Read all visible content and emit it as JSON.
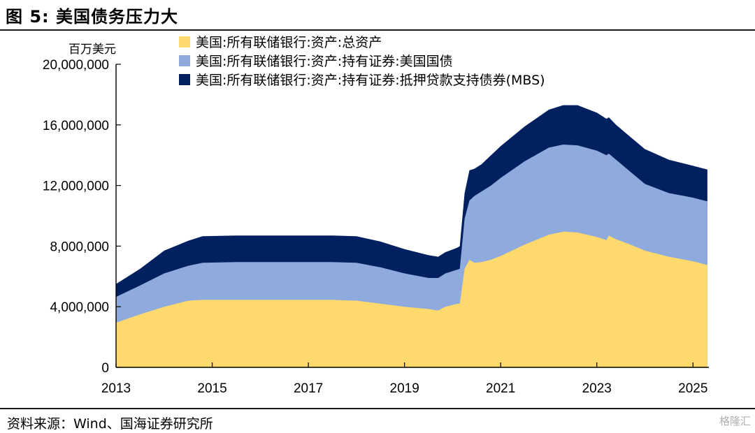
{
  "figure": {
    "title": "图 5:  美国债务压力大",
    "source": "资料来源：Wind、国海证券研究所",
    "watermark": "格隆汇"
  },
  "colors": {
    "total_assets": "#FDD96E",
    "treasuries": "#8FAADC",
    "mbs": "#002060",
    "axis": "#000000"
  },
  "chart_data": {
    "type": "area",
    "stacked": true,
    "unit_label": "百万美元",
    "xlim": [
      2013.0,
      2025.33
    ],
    "ylim": [
      0,
      20000000
    ],
    "x_ticks": [
      2013,
      2015,
      2017,
      2019,
      2021,
      2023,
      2025
    ],
    "y_ticks": [
      {
        "value": 0,
        "label": "0"
      },
      {
        "value": 4000000,
        "label": "4,000,000"
      },
      {
        "value": 8000000,
        "label": "8,000,000"
      },
      {
        "value": 12000000,
        "label": "12,000,000"
      },
      {
        "value": 16000000,
        "label": "16,000,000"
      },
      {
        "value": 20000000,
        "label": "20,000,000"
      }
    ],
    "legend_position": "top",
    "x": [
      2013.0,
      2013.5,
      2014.0,
      2014.5,
      2014.8,
      2015.5,
      2016.5,
      2017.5,
      2018.0,
      2018.5,
      2019.0,
      2019.5,
      2019.7,
      2019.85,
      2020.1,
      2020.15,
      2020.25,
      2020.35,
      2020.45,
      2020.6,
      2020.8,
      2021.0,
      2021.5,
      2022.0,
      2022.3,
      2022.6,
      2023.0,
      2023.2,
      2023.25,
      2023.4,
      2023.7,
      2024.0,
      2024.5,
      2025.0,
      2025.3
    ],
    "series": [
      {
        "name": "美国:所有联储银行:资产:总资产",
        "values": [
          2950000,
          3500000,
          4000000,
          4400000,
          4450000,
          4450000,
          4450000,
          4450000,
          4400000,
          4200000,
          4000000,
          3850000,
          3750000,
          4000000,
          4200000,
          4200000,
          6500000,
          7100000,
          6900000,
          6950000,
          7100000,
          7350000,
          8100000,
          8750000,
          8950000,
          8900000,
          8600000,
          8400000,
          8700000,
          8450000,
          8100000,
          7700000,
          7300000,
          7000000,
          6750000
        ]
      },
      {
        "name": "美国:所有联储银行:资产:持有证券:美国国债",
        "values": [
          4650000,
          5400000,
          6200000,
          6700000,
          6900000,
          6950000,
          6950000,
          6950000,
          6900000,
          6600000,
          6200000,
          5900000,
          5900000,
          6200000,
          6450000,
          6500000,
          9800000,
          11000000,
          11300000,
          11600000,
          12000000,
          12500000,
          13600000,
          14500000,
          14700000,
          14650000,
          14300000,
          14000000,
          14100000,
          13700000,
          12900000,
          12100000,
          11500000,
          11200000,
          10950000
        ]
      },
      {
        "name": "美国:所有联储银行:资产:持有证券:抵押贷款支持债券(MBS)",
        "values": [
          5500000,
          6500000,
          7700000,
          8350000,
          8650000,
          8700000,
          8700000,
          8700000,
          8650000,
          8300000,
          7800000,
          7400000,
          7300000,
          7600000,
          7900000,
          8000000,
          11500000,
          13000000,
          13100000,
          13400000,
          14000000,
          14600000,
          15900000,
          17000000,
          17300000,
          17300000,
          16800000,
          16400000,
          16500000,
          16000000,
          15200000,
          14400000,
          13700000,
          13300000,
          13050000
        ]
      }
    ]
  }
}
